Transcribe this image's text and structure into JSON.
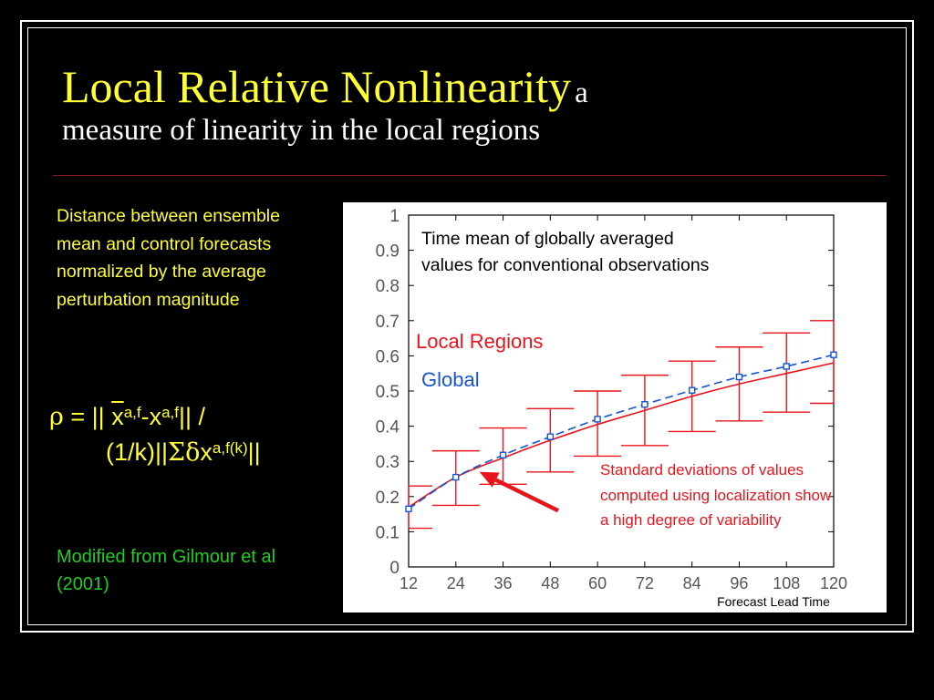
{
  "title": {
    "main": "Local Relative Nonlinearity",
    "sub_inline": "a",
    "sub_line2": "measure of linearity in the local regions"
  },
  "description": "Distance between ensemble mean and control forecasts normalized by the average perturbation magnitude",
  "formula": {
    "rho": "ρ",
    "eq": " = || ",
    "xbar": "x",
    "sup1": "a,f",
    "minus": "-x",
    "sup2": "a,f",
    "tail1": "|| /",
    "l2_start": "(1/k)||",
    "sigma_delta": "Σδ",
    "x3": "x",
    "sup3": "a,f(k)",
    "tail2": "||"
  },
  "credit": "Modified from Gilmour et al (2001)",
  "chart_annotations": {
    "mean_note": "Time mean of globally averaged values for conventional observations",
    "local_label": "Local Regions",
    "global_label": "Global",
    "std_note": "Standard deviations of values computed using localization show a high degree of variability"
  },
  "colors": {
    "title": "#ffff33",
    "local": "#e8141c",
    "global": "#1455d6",
    "credit": "#22cc22",
    "arrow": "#e8141c"
  },
  "chart_data": {
    "type": "line",
    "xlabel": "Forecast Lead Time",
    "ylabel": "",
    "x": [
      12,
      24,
      36,
      48,
      60,
      72,
      84,
      96,
      108,
      120
    ],
    "xlim": [
      12,
      120
    ],
    "ylim": [
      0,
      1
    ],
    "xticks": [
      "12",
      "24",
      "36",
      "48",
      "60",
      "72",
      "84",
      "96",
      "108",
      "120"
    ],
    "yticks": [
      "0",
      "0.1",
      "0.2",
      "0.3",
      "0.4",
      "0.5",
      "0.6",
      "0.7",
      "0.8",
      "0.9",
      "1"
    ],
    "series": [
      {
        "name": "Local Regions",
        "style": "solid",
        "values": [
          0.17,
          0.255,
          0.31,
          0.36,
          0.405,
          0.445,
          0.485,
          0.52,
          0.55,
          0.58
        ],
        "error_upper": [
          0.23,
          0.33,
          0.395,
          0.45,
          0.5,
          0.545,
          0.585,
          0.625,
          0.665,
          0.7
        ],
        "error_lower": [
          0.11,
          0.175,
          0.235,
          0.27,
          0.315,
          0.345,
          0.385,
          0.415,
          0.44,
          0.465
        ]
      },
      {
        "name": "Global",
        "style": "dashed",
        "values": [
          0.165,
          0.255,
          0.318,
          0.37,
          0.42,
          0.462,
          0.502,
          0.54,
          0.57,
          0.603
        ]
      }
    ],
    "arrow": {
      "from": [
        50,
        0.16
      ],
      "to": [
        30,
        0.27
      ]
    }
  }
}
